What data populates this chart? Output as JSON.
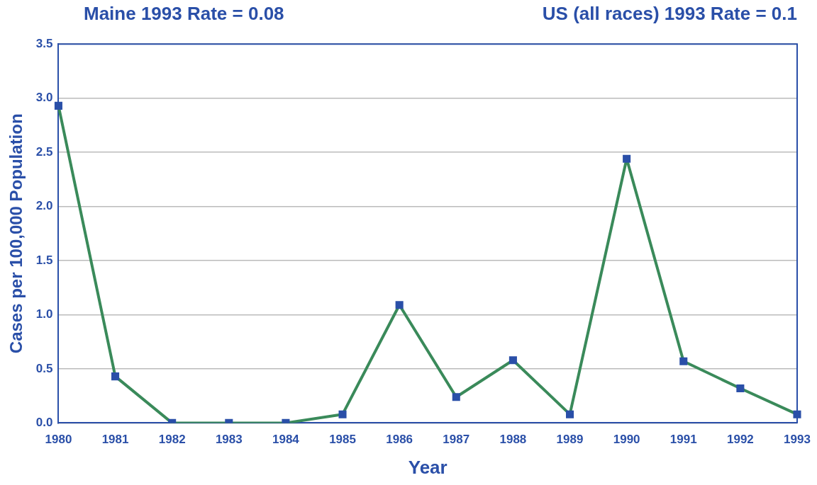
{
  "chart_data": {
    "type": "line",
    "title": "Maine 1993 Rate = 0.08",
    "subtitle": "US (all races) 1993 Rate = 0.1",
    "xlabel": "Year",
    "ylabel": "Cases per 100,000 Population",
    "categories": [
      "1980",
      "1981",
      "1982",
      "1983",
      "1984",
      "1985",
      "1986",
      "1987",
      "1988",
      "1989",
      "1990",
      "1991",
      "1992",
      "1993"
    ],
    "series": [
      {
        "color": "#3a8a5a",
        "values": [
          2.93,
          0.43,
          0,
          0,
          0,
          0.08,
          1.09,
          0.24,
          0.58,
          0.08,
          2.44,
          0.57,
          0.32,
          0.08
        ]
      }
    ],
    "ylim": [
      0,
      3.5
    ],
    "yticks": [
      {
        "value": 0,
        "label": "0.0"
      },
      0.5,
      {
        "value": 1,
        "label": "1.0"
      },
      1.5,
      {
        "value": 2,
        "label": "2.0"
      },
      2.5,
      {
        "value": 3,
        "label": "3.0"
      },
      3.5
    ],
    "grid": "y",
    "marker": "square",
    "line_style": "solid",
    "legend": false
  }
}
